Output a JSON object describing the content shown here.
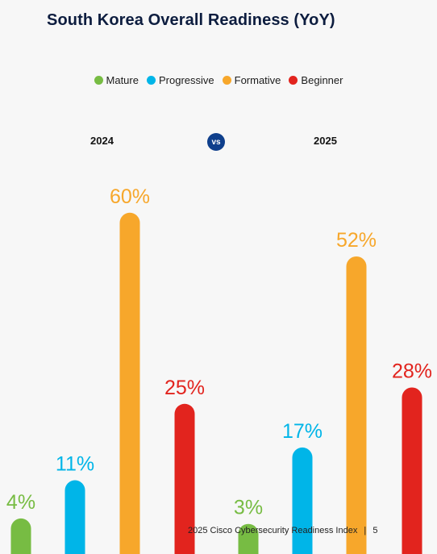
{
  "title": "South Korea Overall Readiness (YoY)",
  "legend": [
    {
      "label": "Mature",
      "color": "#77bc43"
    },
    {
      "label": "Progressive",
      "color": "#00b5e8"
    },
    {
      "label": "Formative",
      "color": "#f7a72b"
    },
    {
      "label": "Beginner",
      "color": "#e2241e"
    }
  ],
  "vs_label": "vs",
  "footer": {
    "text": "2025 Cisco Cybersecurity Readiness Index",
    "separator": "|",
    "page_number": "5"
  },
  "chart_data": {
    "type": "bar",
    "title": "South Korea Overall Readiness (YoY)",
    "categories": [
      "Mature",
      "Progressive",
      "Formative",
      "Beginner"
    ],
    "colors": [
      "#77bc43",
      "#00b5e8",
      "#f7a72b",
      "#e2241e"
    ],
    "series": [
      {
        "name": "2024",
        "values": [
          4,
          11,
          60,
          25
        ],
        "labels": [
          "4%",
          "11%",
          "60%",
          "25%"
        ]
      },
      {
        "name": "2025",
        "values": [
          3,
          17,
          52,
          28
        ],
        "labels": [
          "3%",
          "17%",
          "52%",
          "28%"
        ]
      }
    ],
    "ylim": [
      0,
      100
    ],
    "grid": false,
    "legend_position": "top-center"
  }
}
